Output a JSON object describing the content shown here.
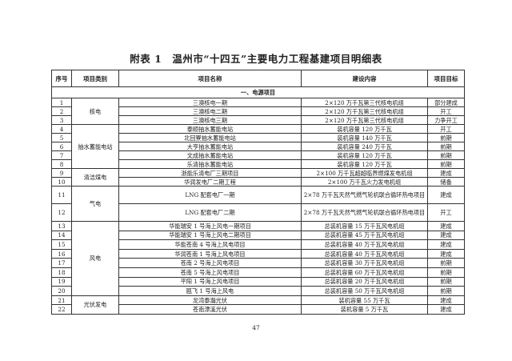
{
  "title": "附表 1　温州市“十四五”主要电力工程基建项目明细表",
  "headers": [
    "序号",
    "项目类别",
    "项目名称",
    "建设内容",
    "项目目标"
  ],
  "section": "一、电源项目",
  "groups": [
    {
      "category": "核电",
      "rows": [
        {
          "no": "1",
          "name": "三澳核电一期",
          "content": "2×120 万千瓦第三代核电机组",
          "goal": "部分建成"
        },
        {
          "no": "2",
          "name": "三澳核电二期",
          "content": "2×120 万千瓦第三代核电机组",
          "goal": "开工"
        },
        {
          "no": "3",
          "name": "三澳核电三期",
          "content": "2×120 万千瓦第三代核电机组",
          "goal": "力争开工"
        }
      ]
    },
    {
      "category": "抽水蓄能电站",
      "rows": [
        {
          "no": "4",
          "name": "泰顺抽水蓄能电站",
          "content": "装机容量 120 万千瓦",
          "goal": "开工"
        },
        {
          "no": "5",
          "name": "北回寮抽水蓄能电站",
          "content": "装机容量 140 万千瓦",
          "goal": "前期"
        },
        {
          "no": "6",
          "name": "大亨抽水蓄能电站",
          "content": "装机容量 240 万千瓦",
          "goal": "前期"
        },
        {
          "no": "7",
          "name": "文成抽水蓄能电站",
          "content": "装机容量 120 万千瓦",
          "goal": "前期"
        },
        {
          "no": "8",
          "name": "乐清抽水蓄能电站",
          "content": "装机容量 120 万千瓦",
          "goal": "前期"
        }
      ]
    },
    {
      "category": "清洁煤电",
      "rows": [
        {
          "no": "9",
          "name": "浙能乐清电厂三期项目",
          "content": "2×100 万千瓦超超临界燃煤发电机组",
          "goal": "建成"
        },
        {
          "no": "10",
          "name": "华润发电厂二期工程",
          "content": "2×100 万千瓦火力发电机组",
          "goal": "储备"
        }
      ]
    },
    {
      "category": "气电",
      "tall": true,
      "rows": [
        {
          "no": "11",
          "name": "LNG 配套电厂一期",
          "content": "2×78 万千瓦天然气燃气轮机联合循环热电项目",
          "goal": "建成"
        },
        {
          "no": "12",
          "name": "LNG 配套电厂二期",
          "content": "2×78 万千瓦天然气燃气轮机联合循环热电项目",
          "goal": "开工"
        }
      ]
    },
    {
      "category": "风电",
      "rows": [
        {
          "no": "13",
          "name": "华能瑞安 1 号海上风电一期项目",
          "content": "总装机容量 15 万千瓦风电机组",
          "goal": "建成"
        },
        {
          "no": "14",
          "name": "华能瑞安 1 号海上风电二期项目",
          "content": "总装机容量 45 万千瓦风电机组",
          "goal": "建成"
        },
        {
          "no": "15",
          "name": "华能苍南 4 号海上风电项目",
          "content": "总装机容量 40 万千瓦风电机组",
          "goal": "建成"
        },
        {
          "no": "16",
          "name": "华润苍南 1 号海上风电项目",
          "content": "总装机容量 40 万千瓦风电机组",
          "goal": "建成"
        },
        {
          "no": "17",
          "name": "苍南 2 号海上风电项目",
          "content": "总装机容量 30 万千瓦风电机组",
          "goal": "前期"
        },
        {
          "no": "18",
          "name": "苍南 5 号海上风电项目",
          "content": "总装机容量 60 万千瓦风电机组",
          "goal": "前期"
        },
        {
          "no": "19",
          "name": "平阳 1 号海上风电项目",
          "content": "总装机容量 20 万千瓦风电机组",
          "goal": "前期"
        },
        {
          "no": "20",
          "name": "瓯飞 1 号海上风电",
          "content": "总装机容量 50 万千瓦风电机组",
          "goal": "前期"
        }
      ]
    },
    {
      "category": "光伏发电",
      "rows": [
        {
          "no": "21",
          "name": "龙湾泰瀚光伏",
          "content": "装机容量 55 万千瓦",
          "goal": "建成"
        },
        {
          "no": "22",
          "name": "苍南漂溪光伏",
          "content": "装机容量 5 万千瓦",
          "goal": "建成"
        }
      ]
    }
  ],
  "page_number": "47"
}
